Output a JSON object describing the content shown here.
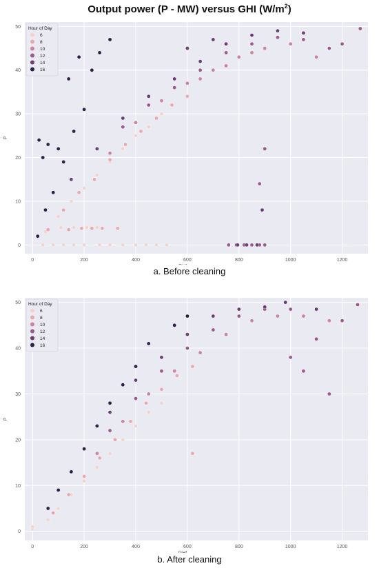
{
  "title": {
    "text": "Output power (P - MW) versus GHI (W/m",
    "sup": "2",
    "end": ")"
  },
  "captions": [
    "a. Before cleaning",
    "b. After cleaning"
  ],
  "colors": {
    "background": "#eaeaf2",
    "grid": "#ffffff",
    "hours": {
      "6": "#f2d3cd",
      "8": "#e6a9b0",
      "10": "#c9849f",
      "12": "#9b5a8d",
      "14": "#6a3e75",
      "16": "#2f1e45"
    }
  },
  "chart_data": [
    {
      "type": "scatter",
      "title": "",
      "xlabel": "GHI",
      "ylabel": "P",
      "xlim": [
        -30,
        1300
      ],
      "ylim": [
        -2,
        51
      ],
      "xticks": [
        0,
        200,
        400,
        600,
        800,
        1000,
        1200
      ],
      "yticks": [
        0,
        10,
        20,
        30,
        40,
        50
      ],
      "grid": true,
      "legend": {
        "title": "Hour of Day",
        "position": "top-left",
        "entries": [
          "6",
          "8",
          "10",
          "12",
          "14",
          "16"
        ]
      },
      "series": [
        {
          "name": "6",
          "points": [
            [
              50,
              3
            ],
            [
              100,
              6.5
            ],
            [
              150,
              10
            ],
            [
              200,
              13
            ],
            [
              250,
              16
            ],
            [
              300,
              19
            ],
            [
              350,
              22
            ],
            [
              400,
              25
            ],
            [
              450,
              27
            ],
            [
              500,
              30
            ],
            [
              40,
              0
            ],
            [
              80,
              0
            ],
            [
              120,
              0
            ],
            [
              160,
              0
            ],
            [
              200,
              0
            ],
            [
              260,
              0
            ],
            [
              300,
              0
            ],
            [
              350,
              0
            ],
            [
              400,
              0
            ],
            [
              440,
              0
            ],
            [
              480,
              0
            ],
            [
              520,
              0
            ],
            [
              110,
              4
            ],
            [
              160,
              4
            ],
            [
              210,
              4
            ],
            [
              250,
              4
            ]
          ]
        },
        {
          "name": "8",
          "points": [
            [
              60,
              3.5
            ],
            [
              120,
              8
            ],
            [
              180,
              12
            ],
            [
              240,
              15
            ],
            [
              300,
              19.5
            ],
            [
              360,
              23
            ],
            [
              420,
              26
            ],
            [
              480,
              29
            ],
            [
              540,
              32
            ],
            [
              600,
              34
            ],
            [
              140,
              3.5
            ],
            [
              190,
              3.8
            ],
            [
              230,
              3.8
            ],
            [
              270,
              3.8
            ],
            [
              330,
              3.8
            ]
          ]
        },
        {
          "name": "10",
          "points": [
            [
              300,
              21
            ],
            [
              400,
              28
            ],
            [
              500,
              33
            ],
            [
              600,
              37
            ],
            [
              700,
              40
            ],
            [
              800,
              43
            ],
            [
              900,
              45
            ],
            [
              1000,
              46
            ],
            [
              1100,
              43
            ],
            [
              650,
              38
            ],
            [
              750,
              41
            ],
            [
              850,
              44
            ]
          ]
        },
        {
          "name": "12",
          "points": [
            [
              350,
              27
            ],
            [
              450,
              32
            ],
            [
              550,
              36
            ],
            [
              650,
              40
            ],
            [
              750,
              44
            ],
            [
              850,
              46
            ],
            [
              950,
              47.5
            ],
            [
              1050,
              47
            ],
            [
              1150,
              45
            ],
            [
              1200,
              46
            ],
            [
              1270,
              49.5
            ],
            [
              900,
              22
            ],
            [
              880,
              14
            ],
            [
              760,
              0
            ],
            [
              790,
              0
            ],
            [
              820,
              0
            ],
            [
              850,
              0
            ],
            [
              880,
              0
            ],
            [
              900,
              0
            ]
          ]
        },
        {
          "name": "14",
          "points": [
            [
              150,
              15
            ],
            [
              250,
              22
            ],
            [
              350,
              29
            ],
            [
              450,
              34
            ],
            [
              550,
              38
            ],
            [
              650,
              42
            ],
            [
              750,
              46
            ],
            [
              850,
              48
            ],
            [
              950,
              49
            ],
            [
              1050,
              48.5
            ],
            [
              600,
              45
            ],
            [
              700,
              47
            ],
            [
              795,
              0
            ],
            [
              830,
              0
            ],
            [
              870,
              0
            ],
            [
              890,
              8
            ]
          ]
        },
        {
          "name": "16",
          "points": [
            [
              20,
              2
            ],
            [
              50,
              8
            ],
            [
              80,
              12
            ],
            [
              120,
              19
            ],
            [
              160,
              26
            ],
            [
              200,
              31
            ],
            [
              230,
              40
            ],
            [
              260,
              44
            ],
            [
              300,
              47
            ],
            [
              40,
              20
            ],
            [
              60,
              23
            ],
            [
              25,
              24
            ],
            [
              100,
              22
            ],
            [
              140,
              38
            ],
            [
              180,
              43
            ]
          ]
        }
      ]
    },
    {
      "type": "scatter",
      "title": "",
      "xlabel": "GHI",
      "ylabel": "P",
      "xlim": [
        -30,
        1300
      ],
      "ylim": [
        -2,
        51
      ],
      "xticks": [
        0,
        200,
        400,
        600,
        800,
        1000,
        1200
      ],
      "yticks": [
        0,
        10,
        20,
        30,
        40,
        50
      ],
      "grid": true,
      "legend": {
        "title": "Hour of Day",
        "position": "top-left",
        "entries": [
          "6",
          "8",
          "10",
          "12",
          "14",
          "16"
        ]
      },
      "series": [
        {
          "name": "6",
          "points": [
            [
              0,
              0.5
            ],
            [
              60,
              2.5
            ],
            [
              100,
              5
            ],
            [
              150,
              8
            ],
            [
              200,
              11
            ],
            [
              250,
              14
            ],
            [
              300,
              17
            ],
            [
              350,
              20
            ],
            [
              400,
              23
            ],
            [
              450,
              26
            ],
            [
              500,
              28
            ],
            [
              0,
              1
            ]
          ]
        },
        {
          "name": "8",
          "points": [
            [
              80,
              4
            ],
            [
              140,
              8
            ],
            [
              200,
              12
            ],
            [
              260,
              16
            ],
            [
              320,
              20
            ],
            [
              380,
              24
            ],
            [
              440,
              28
            ],
            [
              500,
              31
            ],
            [
              560,
              34
            ],
            [
              620,
              36
            ],
            [
              620,
              17
            ]
          ]
        },
        {
          "name": "10",
          "points": [
            [
              250,
              17
            ],
            [
              350,
              24
            ],
            [
              450,
              30
            ],
            [
              550,
              35
            ],
            [
              650,
              39
            ],
            [
              750,
              43
            ],
            [
              850,
              46
            ],
            [
              950,
              47
            ],
            [
              1050,
              47
            ],
            [
              1150,
              46
            ]
          ]
        },
        {
          "name": "12",
          "points": [
            [
              300,
              22
            ],
            [
              400,
              29
            ],
            [
              500,
              35
            ],
            [
              600,
              40
            ],
            [
              700,
              44
            ],
            [
              800,
              47
            ],
            [
              900,
              48.5
            ],
            [
              1000,
              48.5
            ],
            [
              1100,
              42
            ],
            [
              1150,
              30
            ],
            [
              1200,
              46
            ],
            [
              1260,
              49.5
            ],
            [
              1000,
              38
            ],
            [
              1050,
              35
            ]
          ]
        },
        {
          "name": "14",
          "points": [
            [
              200,
              18
            ],
            [
              300,
              26
            ],
            [
              400,
              33
            ],
            [
              500,
              38
            ],
            [
              600,
              43
            ],
            [
              700,
              47
            ],
            [
              800,
              48.5
            ],
            [
              900,
              49
            ],
            [
              980,
              50
            ],
            [
              1100,
              48.5
            ]
          ]
        },
        {
          "name": "16",
          "points": [
            [
              60,
              5
            ],
            [
              100,
              9
            ],
            [
              150,
              13
            ],
            [
              200,
              18
            ],
            [
              250,
              23
            ],
            [
              300,
              28
            ],
            [
              350,
              32
            ],
            [
              400,
              36
            ],
            [
              450,
              41
            ],
            [
              550,
              45
            ],
            [
              600,
              47
            ]
          ]
        }
      ]
    }
  ]
}
